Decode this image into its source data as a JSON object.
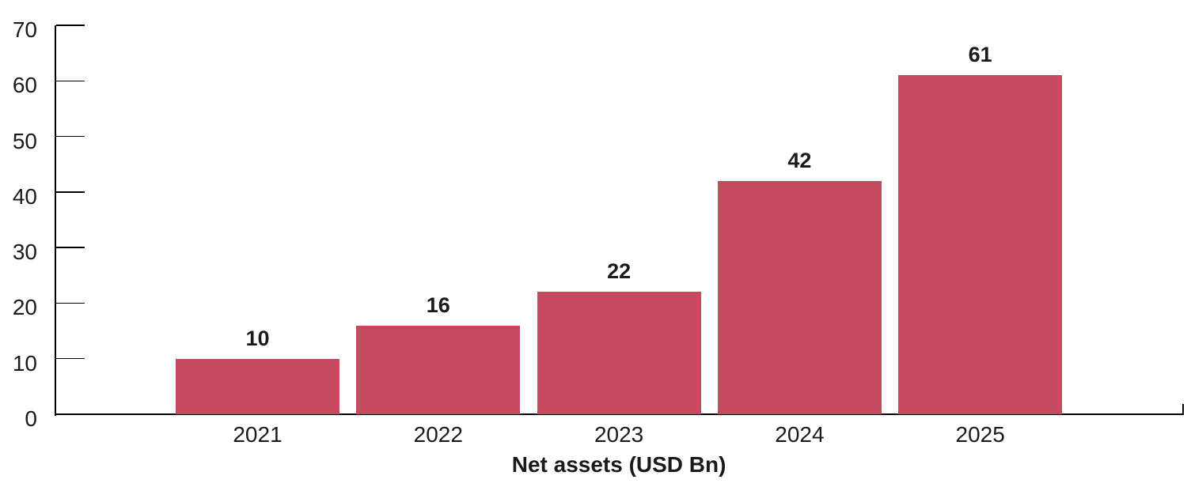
{
  "chart_data": {
    "type": "bar",
    "title": "",
    "xlabel": "Net assets (USD Bn)",
    "ylabel": "",
    "categories": [
      "2021",
      "2022",
      "2023",
      "2024",
      "2025"
    ],
    "values": [
      10,
      16,
      22,
      42,
      61
    ],
    "value_labels": [
      "10",
      "16",
      "22",
      "42",
      "61"
    ],
    "ylim": [
      0,
      70
    ],
    "yticks": [
      0,
      10,
      20,
      30,
      40,
      50,
      60,
      70
    ],
    "grid": "off",
    "legend": "none",
    "colors": {
      "bar": "#C64A5E",
      "text": "#1A1A1A",
      "axis": "#000000",
      "background": "#FFFFFF"
    }
  }
}
